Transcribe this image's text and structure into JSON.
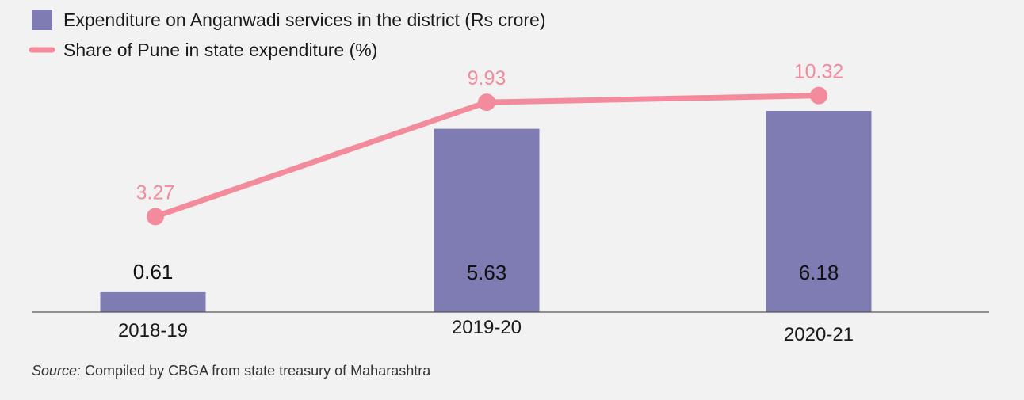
{
  "chart_data": {
    "type": "bar+line",
    "categories": [
      "2018-19",
      "2019-20",
      "2020-21"
    ],
    "series": [
      {
        "name": "Expenditure on Anganwadi services in the district (Rs crore)",
        "kind": "bar",
        "color": "#7f7bb3",
        "values": [
          0.61,
          5.63,
          6.18
        ],
        "labels": [
          "0.61",
          "5.63",
          "6.18"
        ]
      },
      {
        "name": "Share of Pune in state expenditure (%)",
        "kind": "line",
        "color": "#f48b9c",
        "values": [
          3.27,
          9.93,
          10.32
        ],
        "labels": [
          "3.27",
          "9.93",
          "10.32"
        ]
      }
    ],
    "legend_position": "top-left"
  },
  "source": {
    "prefix": "Source:",
    "text": " Compiled by CBGA from state treasury of Maharashtra"
  }
}
